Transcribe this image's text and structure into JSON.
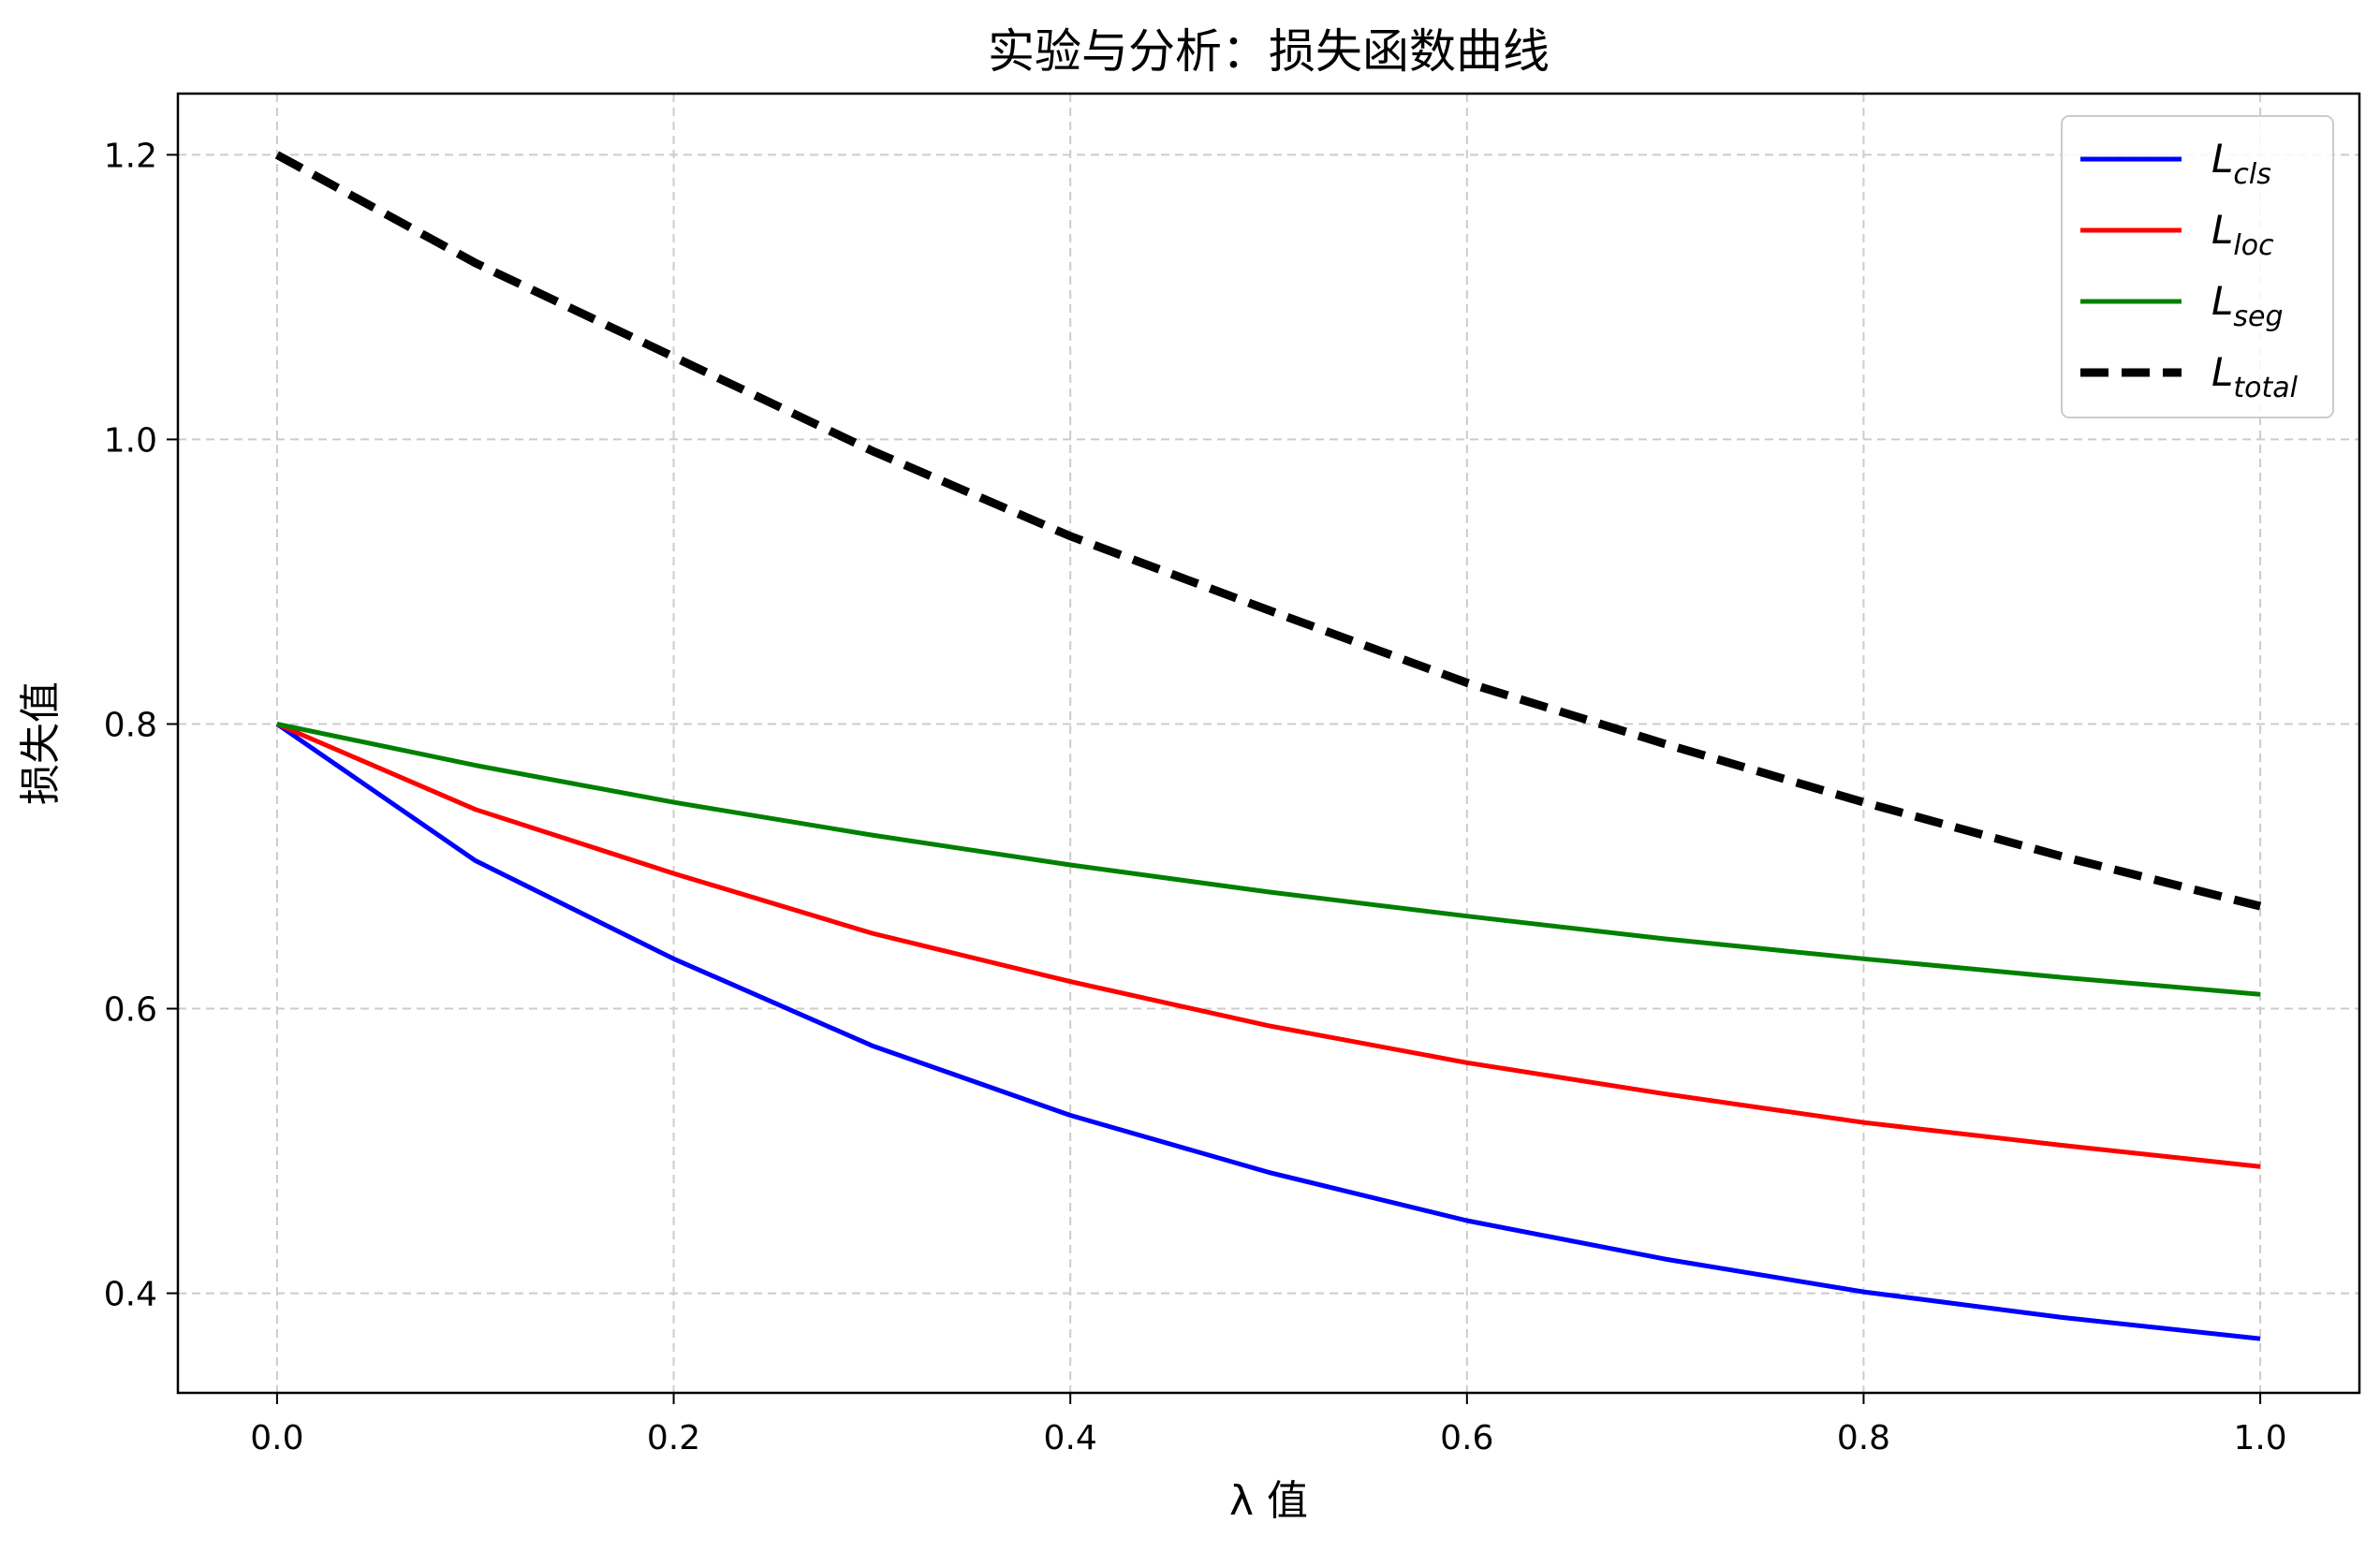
{
  "chart_data": {
    "type": "line",
    "title": "实验与分析：损失函数曲线",
    "xlabel": "λ 值",
    "ylabel": "损失值",
    "xlim": [
      -0.05,
      1.05
    ],
    "ylim": [
      0.33,
      1.243
    ],
    "xticks": [
      {
        "value": 0.0,
        "label": "0.0"
      },
      {
        "value": 0.2,
        "label": "0.2"
      },
      {
        "value": 0.4,
        "label": "0.4"
      },
      {
        "value": 0.6,
        "label": "0.6"
      },
      {
        "value": 0.8,
        "label": "0.8"
      },
      {
        "value": 1.0,
        "label": "1.0"
      }
    ],
    "yticks": [
      {
        "value": 0.4,
        "label": "0.4"
      },
      {
        "value": 0.6,
        "label": "0.6"
      },
      {
        "value": 0.8,
        "label": "0.8"
      },
      {
        "value": 1.0,
        "label": "1.0"
      },
      {
        "value": 1.2,
        "label": "1.2"
      }
    ],
    "grid": true,
    "legend_position": "top-right",
    "x": [
      0.0,
      0.1,
      0.2,
      0.3,
      0.4,
      0.5,
      0.6,
      0.7,
      0.8,
      0.9,
      1.0
    ],
    "series": [
      {
        "name": "L_cls",
        "name_base": "L",
        "name_sub": "cls",
        "color": "#0000ff",
        "style": "solid",
        "values": [
          0.8,
          0.704,
          0.635,
          0.574,
          0.525,
          0.485,
          0.451,
          0.424,
          0.401,
          0.383,
          0.368
        ]
      },
      {
        "name": "L_loc",
        "name_base": "L",
        "name_sub": "loc",
        "color": "#ff0000",
        "style": "solid",
        "values": [
          0.8,
          0.74,
          0.695,
          0.653,
          0.619,
          0.588,
          0.562,
          0.54,
          0.52,
          0.504,
          0.489
        ]
      },
      {
        "name": "L_seg",
        "name_base": "L",
        "name_sub": "seg",
        "color": "#008000",
        "style": "solid",
        "values": [
          0.8,
          0.771,
          0.745,
          0.722,
          0.701,
          0.682,
          0.665,
          0.649,
          0.635,
          0.622,
          0.61
        ]
      },
      {
        "name": "L_total",
        "name_base": "L",
        "name_sub": "total",
        "color": "#000000",
        "style": "dashed",
        "values": [
          1.2,
          1.124,
          1.058,
          0.992,
          0.932,
          0.88,
          0.829,
          0.786,
          0.745,
          0.707,
          0.672
        ]
      }
    ]
  }
}
